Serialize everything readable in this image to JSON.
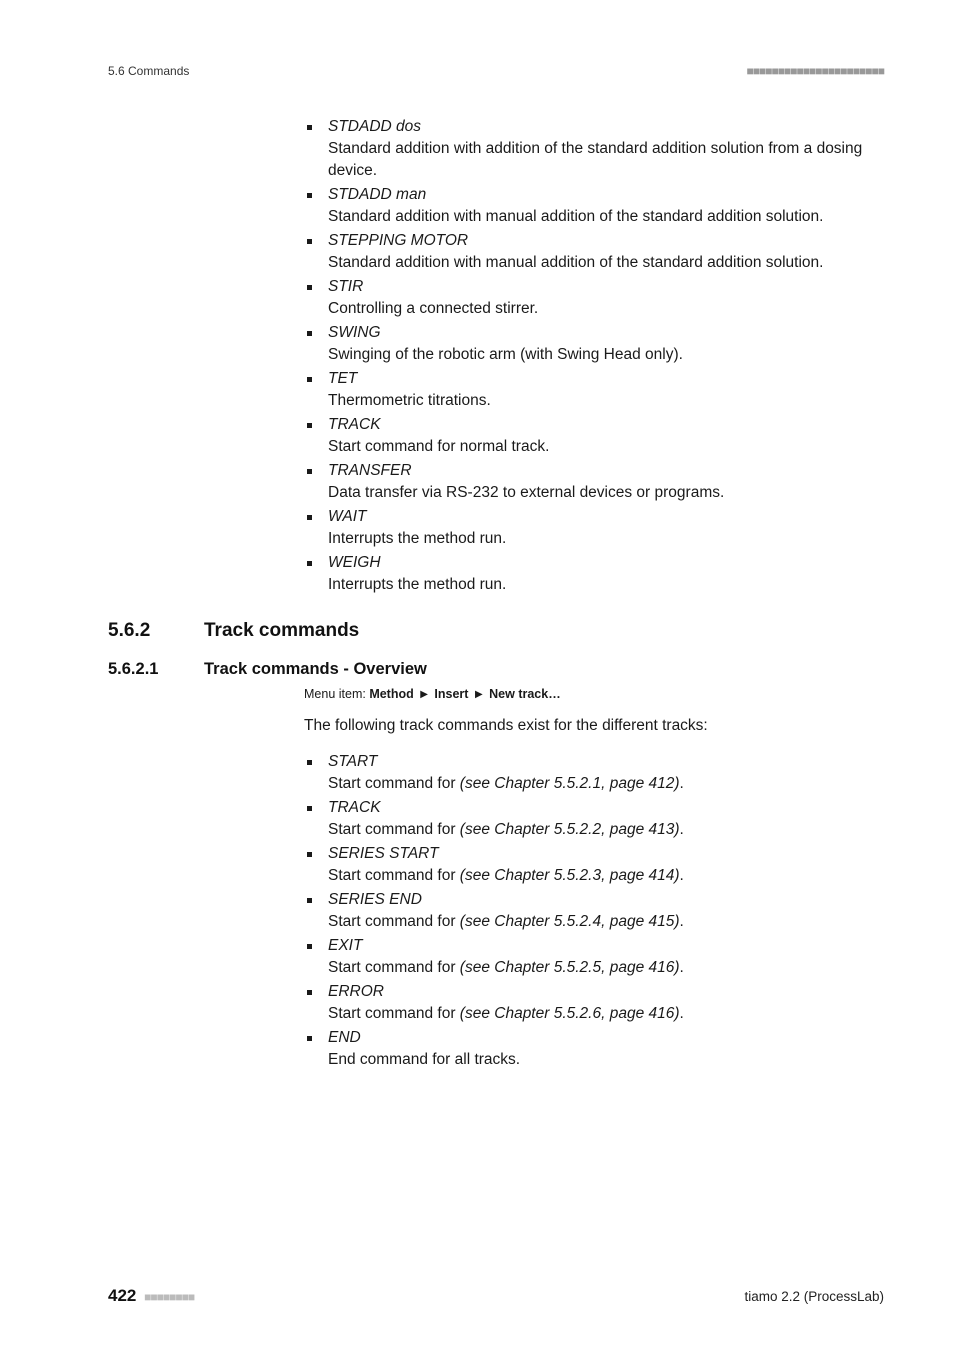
{
  "header": {
    "left": "5.6 Commands",
    "dashes": "■■■■■■■■■■■■■■■■■■■■■■"
  },
  "list1": [
    {
      "title": "STDADD dos",
      "desc": "Standard addition with addition of the standard addition solution from a dosing device."
    },
    {
      "title": "STDADD man",
      "desc": "Standard addition with manual addition of the standard addition solution."
    },
    {
      "title": "STEPPING MOTOR",
      "desc": "Standard addition with manual addition of the standard addition solution."
    },
    {
      "title": "STIR",
      "desc": "Controlling a connected stirrer."
    },
    {
      "title": "SWING",
      "desc": "Swinging of the robotic arm (with Swing Head only)."
    },
    {
      "title": "TET",
      "desc": "Thermometric titrations."
    },
    {
      "title": "TRACK",
      "desc": "Start command for normal track."
    },
    {
      "title": "TRANSFER",
      "desc": "Data transfer via RS-232 to external devices or programs."
    },
    {
      "title": "WAIT",
      "desc": "Interrupts the method run."
    },
    {
      "title": "WEIGH",
      "desc": "Interrupts the method run."
    }
  ],
  "sec_h2": {
    "num": "5.6.2",
    "title": "Track commands"
  },
  "sec_h3": {
    "num": "5.6.2.1",
    "title": "Track commands - Overview"
  },
  "menu": {
    "label": "Menu item: ",
    "p1": "Method",
    "p2": "Insert",
    "p3": "New track…"
  },
  "intro": "The following track commands exist for the different tracks:",
  "list2": [
    {
      "title": "START",
      "desc_pre": "Start command for ",
      "ref": "(see Chapter 5.5.2.1, page 412)",
      "desc_post": "."
    },
    {
      "title": "TRACK",
      "desc_pre": "Start command for ",
      "ref": "(see Chapter 5.5.2.2, page 413)",
      "desc_post": "."
    },
    {
      "title": "SERIES START",
      "desc_pre": "Start command for ",
      "ref": "(see Chapter 5.5.2.3, page 414)",
      "desc_post": "."
    },
    {
      "title": "SERIES END",
      "desc_pre": "Start command for ",
      "ref": "(see Chapter 5.5.2.4, page 415)",
      "desc_post": "."
    },
    {
      "title": "EXIT",
      "desc_pre": "Start command for ",
      "ref": "(see Chapter 5.5.2.5, page 416)",
      "desc_post": "."
    },
    {
      "title": "ERROR",
      "desc_pre": "Start command for ",
      "ref": "(see Chapter 5.5.2.6, page 416)",
      "desc_post": "."
    },
    {
      "title": "END",
      "desc_pre": "End command for all tracks.",
      "ref": "",
      "desc_post": ""
    }
  ],
  "footer": {
    "page": "422",
    "dashes": "■■■■■■■■",
    "right": "tiamo 2.2 (ProcessLab)"
  },
  "style": {
    "bg": "#ffffff",
    "text": "#1a1a1a",
    "italic_color": "#1a1a1a",
    "body_fontsize": 15.5,
    "heading_h2_fontsize": 19,
    "heading_h3_fontsize": 16.5,
    "header_fontsize": 12,
    "footer_page_fontsize": 17
  }
}
